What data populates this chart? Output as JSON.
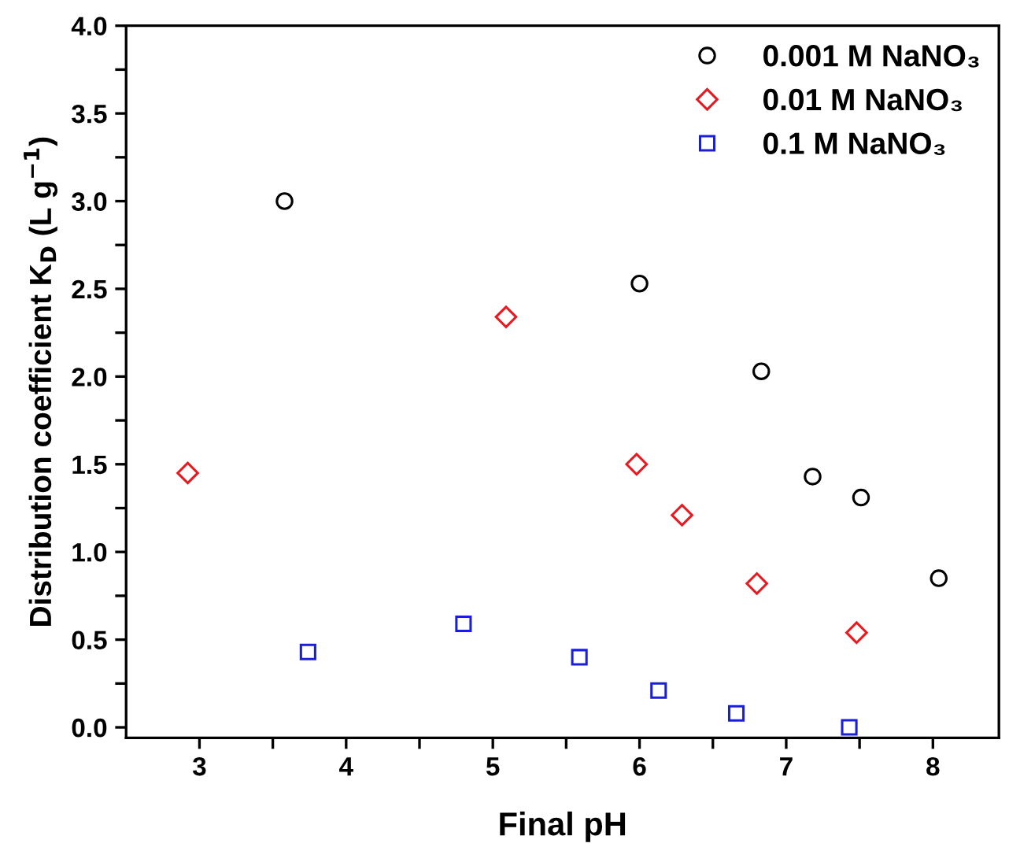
{
  "chart_data": {
    "type": "scatter",
    "xlabel": "Final pH",
    "ylabel": "Distribution coefficient K$_{D}$ (L g$^{−1}$)",
    "xlim": [
      2.5,
      8.45
    ],
    "ylim": [
      -0.06,
      4.0
    ],
    "xticks": [
      3,
      {
        "value": 3.5,
        "label": null
      },
      4,
      {
        "value": 4.5,
        "label": null
      },
      5,
      {
        "value": 5.5,
        "label": null
      },
      6,
      {
        "value": 6.5,
        "label": null
      },
      7,
      {
        "value": 7.5,
        "label": null
      },
      8
    ],
    "yticks": [
      {
        "value": 0,
        "label": "0.0"
      },
      {
        "value": 0.25,
        "label": null
      },
      0.5,
      {
        "value": 0.75,
        "label": null
      },
      {
        "value": 1,
        "label": "1.0"
      },
      {
        "value": 1.25,
        "label": null
      },
      1.5,
      {
        "value": 1.75,
        "label": null
      },
      {
        "value": 2,
        "label": "2.0"
      },
      {
        "value": 2.25,
        "label": null
      },
      2.5,
      {
        "value": 2.75,
        "label": null
      },
      {
        "value": 3,
        "label": "3.0"
      },
      {
        "value": 3.25,
        "label": null
      },
      3.5,
      {
        "value": 3.75,
        "label": null
      },
      {
        "value": 4,
        "label": "4.0"
      }
    ],
    "grid": false,
    "legend": "top right",
    "series": [
      {
        "name": "0.001 M NaNO₃",
        "color": "#000000",
        "marker": "circle",
        "x": [
          3.58,
          6.0,
          6.83,
          7.18,
          7.51,
          8.04
        ],
        "values": [
          3.0,
          2.53,
          2.03,
          1.43,
          1.31,
          0.85
        ]
      },
      {
        "name": "0.01 M NaNO₃",
        "color": "#e8191f",
        "marker": "diamond",
        "x": [
          2.92,
          5.09,
          5.98,
          6.29,
          6.8,
          7.48
        ],
        "values": [
          1.45,
          2.34,
          1.5,
          1.21,
          0.82,
          0.54
        ]
      },
      {
        "name": "0.1 M NaNO₃",
        "color": "#1a1fd0",
        "marker": "square",
        "x": [
          3.74,
          4.8,
          5.59,
          6.13,
          6.66,
          7.43
        ],
        "values": [
          0.43,
          0.59,
          0.4,
          0.21,
          0.08,
          0.0
        ]
      }
    ]
  }
}
